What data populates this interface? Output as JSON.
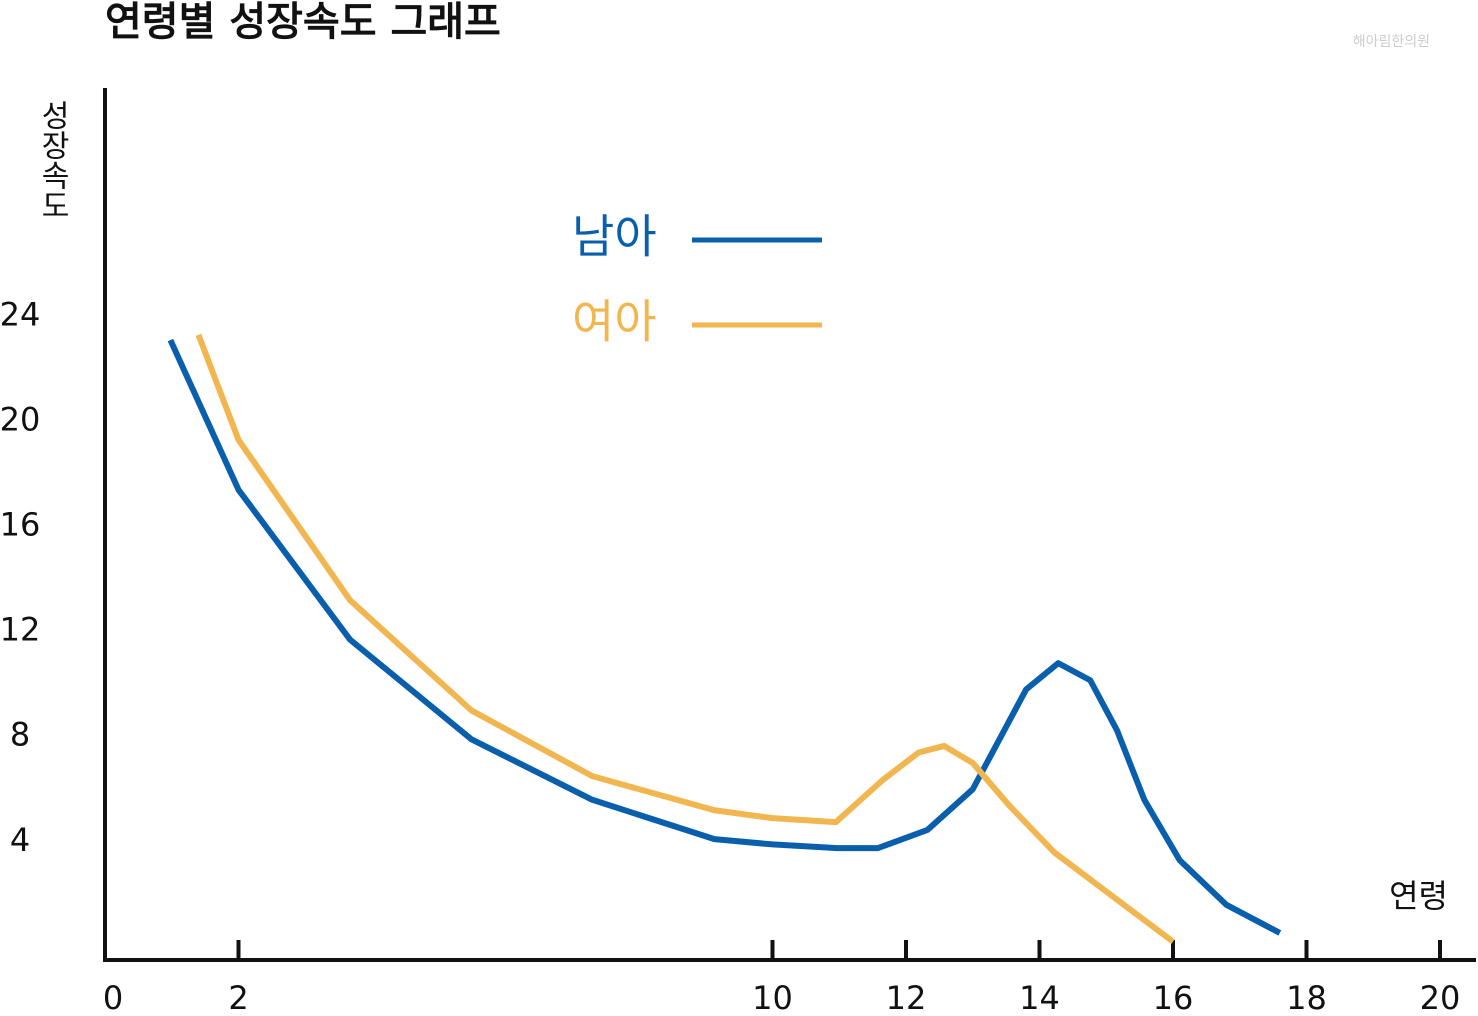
{
  "chart_data": {
    "type": "line",
    "title": "연령별 성장속도 그래프",
    "watermark": "해아림한의원",
    "y_label": "성장속도",
    "x_label": "연령",
    "xlim": [
      0,
      20
    ],
    "xticks": [
      0,
      2,
      10,
      12,
      14,
      16,
      18,
      20
    ],
    "ylim": [
      -0.5,
      33
    ],
    "yticks": [
      4,
      8,
      12,
      16,
      20,
      24
    ],
    "series": [
      {
        "name": "남아",
        "color": "#0a5fad",
        "x": [
          0.98,
          2,
          3.67,
          5.49,
          7.3,
          9.13,
          10,
          10.97,
          11.58,
          12.32,
          13.0,
          13.4,
          13.8,
          14.28,
          14.76,
          15.16,
          15.57,
          16.1,
          16.8,
          17.6
        ],
        "values": [
          23.1,
          17.4,
          11.7,
          7.9,
          5.6,
          4.1,
          3.9,
          3.76,
          3.76,
          4.45,
          6.0,
          7.9,
          9.8,
          10.8,
          10.15,
          8.25,
          5.6,
          3.3,
          1.6,
          0.53
        ]
      },
      {
        "name": "여아",
        "color": "#f2b651",
        "x": [
          1.4,
          2,
          3.67,
          5.49,
          7.3,
          9.13,
          10,
          10.95,
          11.65,
          12.19,
          12.57,
          13.0,
          13.54,
          14.22,
          15.16,
          16
        ],
        "values": [
          23.3,
          19.3,
          13.2,
          9.0,
          6.5,
          5.2,
          4.9,
          4.75,
          6.35,
          7.4,
          7.65,
          7.0,
          5.4,
          3.6,
          1.8,
          0.2
        ]
      }
    ]
  }
}
